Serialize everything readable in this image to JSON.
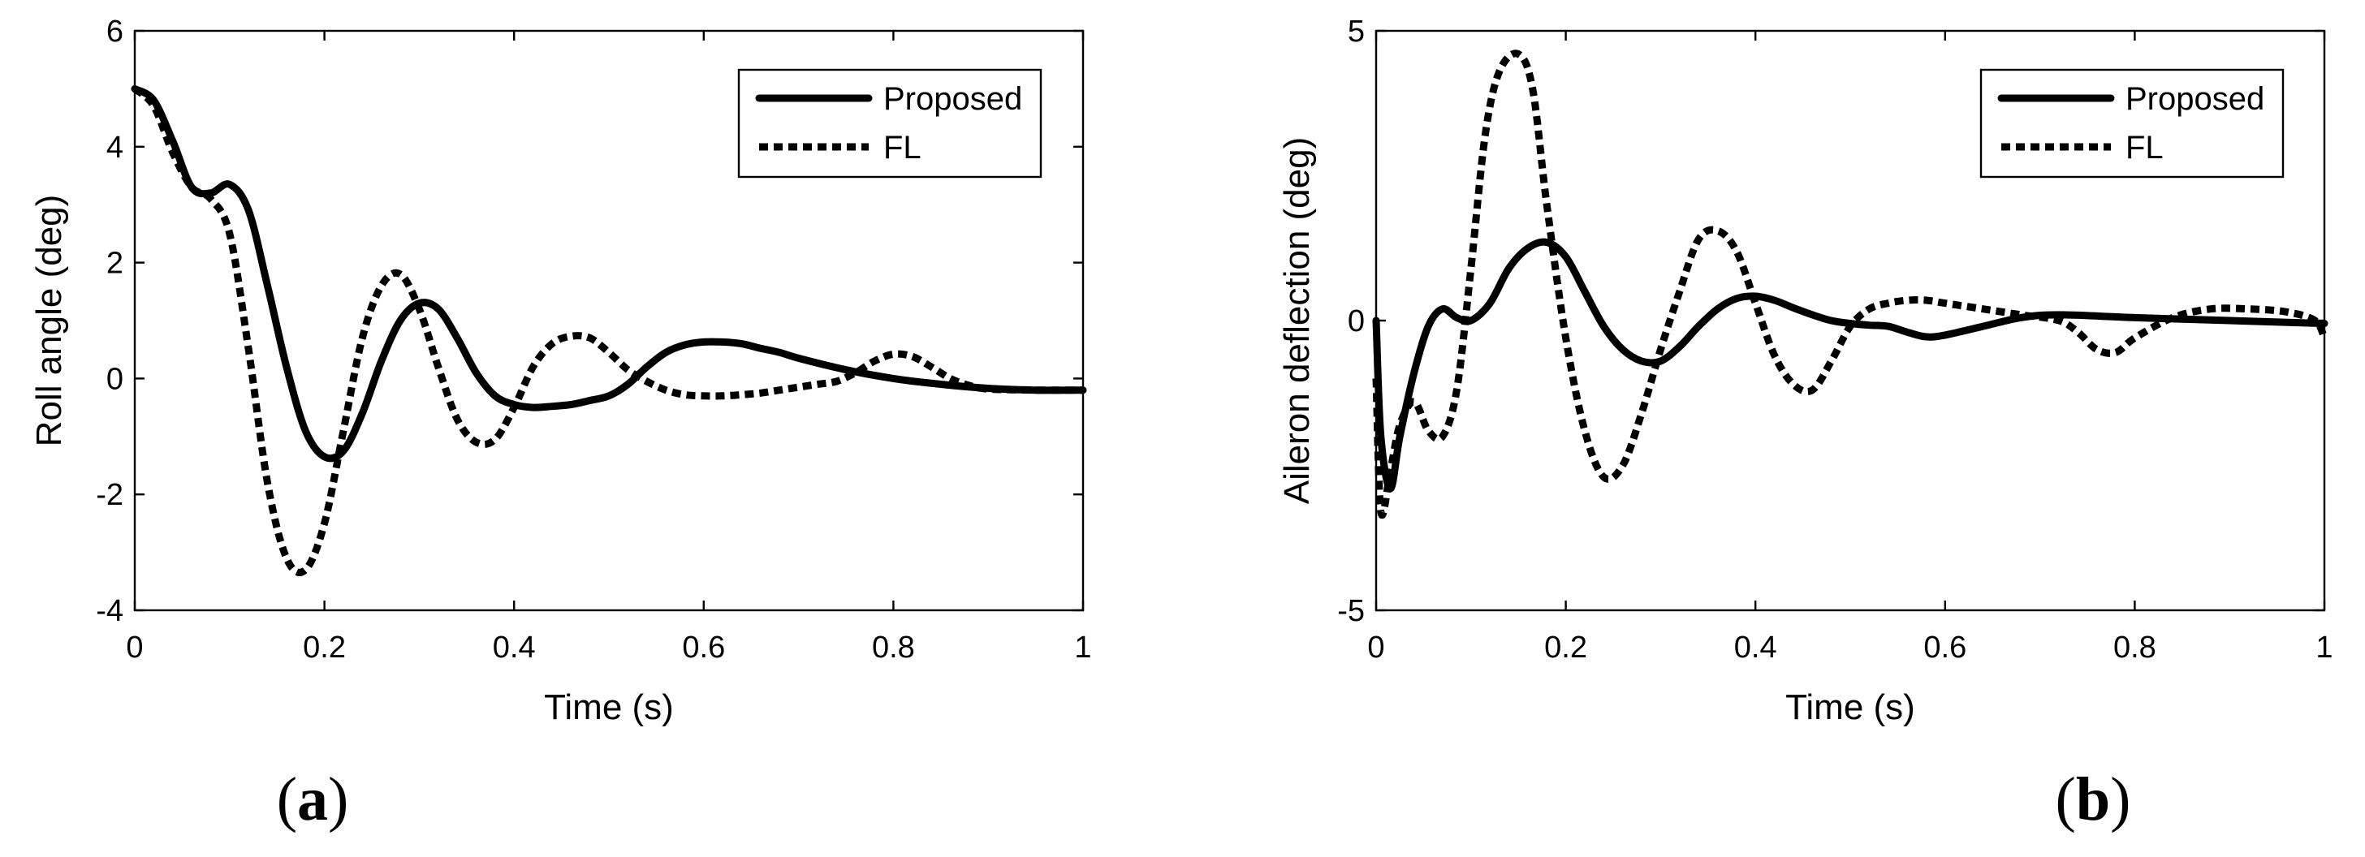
{
  "chart_data": [
    {
      "type": "line",
      "panel_label": "a",
      "xlabel": "Time (s)",
      "ylabel": "Roll angle (deg)",
      "xlim": [
        0,
        1
      ],
      "ylim": [
        -4,
        6
      ],
      "xticks": [
        0,
        0.2,
        0.4,
        0.6,
        0.8,
        1
      ],
      "xtick_labels": [
        "0",
        "0.2",
        "0.4",
        "0.6",
        "0.8",
        "1"
      ],
      "yticks": [
        -4,
        -2,
        0,
        2,
        4,
        6
      ],
      "ytick_labels": [
        "-4",
        "-2",
        "0",
        "2",
        "4",
        "6"
      ],
      "legend_position": "top-right",
      "series": [
        {
          "name": "Proposed",
          "style": "solid",
          "x": [
            0,
            0.02,
            0.04,
            0.06,
            0.08,
            0.1,
            0.12,
            0.14,
            0.16,
            0.18,
            0.2,
            0.22,
            0.24,
            0.26,
            0.28,
            0.3,
            0.32,
            0.34,
            0.36,
            0.38,
            0.4,
            0.42,
            0.44,
            0.46,
            0.48,
            0.5,
            0.52,
            0.54,
            0.56,
            0.58,
            0.6,
            0.62,
            0.64,
            0.66,
            0.68,
            0.7,
            0.75,
            0.8,
            0.85,
            0.9,
            0.95,
            1
          ],
          "y": [
            5.0,
            4.8,
            4.1,
            3.3,
            3.2,
            3.35,
            2.9,
            1.6,
            0.2,
            -0.9,
            -1.35,
            -1.25,
            -0.6,
            0.3,
            1.0,
            1.3,
            1.2,
            0.7,
            0.1,
            -0.3,
            -0.45,
            -0.5,
            -0.48,
            -0.45,
            -0.38,
            -0.3,
            -0.1,
            0.2,
            0.45,
            0.58,
            0.63,
            0.63,
            0.6,
            0.52,
            0.45,
            0.35,
            0.15,
            0.0,
            -0.1,
            -0.17,
            -0.2,
            -0.2
          ]
        },
        {
          "name": "FL",
          "style": "dotted",
          "x": [
            0,
            0.02,
            0.04,
            0.06,
            0.08,
            0.1,
            0.12,
            0.14,
            0.16,
            0.18,
            0.2,
            0.22,
            0.24,
            0.26,
            0.28,
            0.3,
            0.32,
            0.34,
            0.36,
            0.38,
            0.4,
            0.42,
            0.44,
            0.46,
            0.48,
            0.5,
            0.52,
            0.54,
            0.56,
            0.58,
            0.6,
            0.62,
            0.64,
            0.66,
            0.68,
            0.7,
            0.72,
            0.74,
            0.76,
            0.78,
            0.8,
            0.82,
            0.84,
            0.86,
            0.88,
            0.9,
            0.95,
            1
          ],
          "y": [
            5.0,
            4.7,
            3.9,
            3.3,
            3.1,
            2.5,
            0.5,
            -1.8,
            -3.1,
            -3.3,
            -2.5,
            -0.9,
            0.7,
            1.6,
            1.8,
            1.2,
            0.2,
            -0.7,
            -1.1,
            -1.05,
            -0.5,
            0.2,
            0.6,
            0.73,
            0.7,
            0.45,
            0.15,
            -0.05,
            -0.2,
            -0.28,
            -0.3,
            -0.3,
            -0.28,
            -0.25,
            -0.2,
            -0.15,
            -0.1,
            -0.05,
            0.1,
            0.3,
            0.42,
            0.38,
            0.2,
            0.0,
            -0.12,
            -0.18,
            -0.2,
            -0.2
          ]
        }
      ]
    },
    {
      "type": "line",
      "panel_label": "b",
      "xlabel": "Time (s)",
      "ylabel": "Aileron deflection (deg)",
      "xlim": [
        0,
        1
      ],
      "ylim": [
        -5,
        5
      ],
      "xticks": [
        0,
        0.2,
        0.4,
        0.6,
        0.8,
        1
      ],
      "xtick_labels": [
        "0",
        "0.2",
        "0.4",
        "0.6",
        "0.8",
        "1"
      ],
      "yticks": [
        -5,
        0,
        5
      ],
      "ytick_labels": [
        "-5",
        "0",
        "5"
      ],
      "legend_position": "top-right",
      "series": [
        {
          "name": "Proposed",
          "style": "solid",
          "x": [
            0,
            0.005,
            0.015,
            0.025,
            0.04,
            0.055,
            0.07,
            0.085,
            0.1,
            0.12,
            0.14,
            0.16,
            0.18,
            0.2,
            0.22,
            0.24,
            0.26,
            0.28,
            0.3,
            0.32,
            0.34,
            0.36,
            0.38,
            0.4,
            0.42,
            0.44,
            0.46,
            0.48,
            0.5,
            0.52,
            0.54,
            0.56,
            0.58,
            0.6,
            0.64,
            0.68,
            0.72,
            0.8,
            0.9,
            1
          ],
          "y": [
            0,
            -2.0,
            -2.9,
            -2.0,
            -0.9,
            -0.1,
            0.2,
            0.05,
            0.0,
            0.3,
            0.9,
            1.25,
            1.35,
            1.1,
            0.5,
            -0.1,
            -0.5,
            -0.7,
            -0.7,
            -0.45,
            -0.1,
            0.2,
            0.38,
            0.42,
            0.35,
            0.22,
            0.1,
            0.0,
            -0.05,
            -0.08,
            -0.1,
            -0.2,
            -0.28,
            -0.25,
            -0.1,
            0.05,
            0.1,
            0.05,
            0.0,
            -0.05
          ]
        },
        {
          "name": "FL",
          "style": "dotted",
          "x": [
            0,
            0.005,
            0.015,
            0.025,
            0.04,
            0.055,
            0.07,
            0.085,
            0.1,
            0.115,
            0.13,
            0.15,
            0.165,
            0.18,
            0.2,
            0.22,
            0.24,
            0.26,
            0.28,
            0.3,
            0.32,
            0.34,
            0.36,
            0.38,
            0.4,
            0.42,
            0.44,
            0.46,
            0.48,
            0.5,
            0.52,
            0.54,
            0.56,
            0.58,
            0.6,
            0.64,
            0.68,
            0.72,
            0.74,
            0.76,
            0.78,
            0.8,
            0.84,
            0.88,
            0.92,
            0.96,
            0.99,
            1
          ],
          "y": [
            -1.0,
            -3.3,
            -2.6,
            -1.8,
            -1.4,
            -1.9,
            -2.0,
            -1.2,
            0.9,
            3.2,
            4.3,
            4.6,
            4.0,
            2.0,
            -0.3,
            -1.9,
            -2.7,
            -2.5,
            -1.6,
            -0.5,
            0.5,
            1.4,
            1.55,
            1.2,
            0.3,
            -0.6,
            -1.1,
            -1.2,
            -0.7,
            -0.1,
            0.2,
            0.3,
            0.35,
            0.35,
            0.3,
            0.2,
            0.1,
            0.0,
            -0.2,
            -0.5,
            -0.55,
            -0.3,
            0.05,
            0.2,
            0.2,
            0.15,
            0.0,
            -0.3
          ]
        }
      ]
    }
  ]
}
